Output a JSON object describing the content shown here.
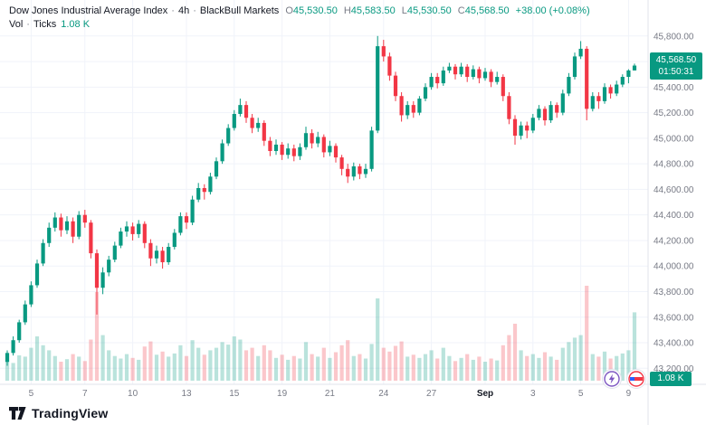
{
  "legend": {
    "title": "Dow Jones Industrial Average Index",
    "separator": "·",
    "interval": "4h",
    "feed": "BlackBull Markets",
    "ohlc": {
      "o_label": "O",
      "o": "45,530.50",
      "h_label": "H",
      "h": "45,583.50",
      "l_label": "L",
      "l": "45,530.50",
      "c_label": "C",
      "c": "45,568.50",
      "change": "+38.00 (+0.08%)"
    },
    "volume": {
      "label": "Vol",
      "separator": "·",
      "type": "Ticks",
      "value": "1.08 K"
    }
  },
  "price_axis": {
    "last_price": "45,568.50",
    "countdown": "01:50:31"
  },
  "volume_axis": {
    "last_volume": "1.08 K"
  },
  "footer": {
    "logo_text": "TradingView"
  },
  "chart_data": {
    "type": "candlestick",
    "title": "Dow Jones Industrial Average Index",
    "interval": "4h",
    "feed": "BlackBull Markets",
    "last_bar": {
      "open": 45530.5,
      "high": 45583.5,
      "low": 45530.5,
      "close": 45568.5,
      "change": 38.0,
      "change_pct": 0.08
    },
    "y_axis": {
      "min": 43200,
      "max": 45800,
      "step": 200
    },
    "x_ticks": [
      {
        "index": 4,
        "label": "5"
      },
      {
        "index": 13,
        "label": "7"
      },
      {
        "index": 21,
        "label": "10"
      },
      {
        "index": 30,
        "label": "13"
      },
      {
        "index": 38,
        "label": "15"
      },
      {
        "index": 46,
        "label": "19"
      },
      {
        "index": 54,
        "label": "21"
      },
      {
        "index": 63,
        "label": "24"
      },
      {
        "index": 71,
        "label": "27"
      },
      {
        "index": 80,
        "label": "Sep"
      },
      {
        "index": 88,
        "label": "3"
      },
      {
        "index": 96,
        "label": "5"
      },
      {
        "index": 104,
        "label": "9"
      }
    ],
    "colors": {
      "up": "#089981",
      "down": "#f23645",
      "vol_up": "rgba(8,153,129,0.28)",
      "vol_down": "rgba(242,54,69,0.28)",
      "grid": "#f0f3fa",
      "axis_text": "#787b86",
      "month_text": "#131722",
      "border": "#e0e3eb"
    },
    "candles": [
      [
        43250,
        43340,
        43220,
        43320
      ],
      [
        43320,
        43450,
        43300,
        43420
      ],
      [
        43420,
        43580,
        43400,
        43560
      ],
      [
        43560,
        43730,
        43540,
        43700
      ],
      [
        43700,
        43880,
        43680,
        43850
      ],
      [
        43850,
        44050,
        43830,
        44020
      ],
      [
        44020,
        44210,
        44000,
        44180
      ],
      [
        44180,
        44340,
        44150,
        44300
      ],
      [
        44300,
        44420,
        44270,
        44380
      ],
      [
        44380,
        44410,
        44230,
        44280
      ],
      [
        44280,
        44390,
        44250,
        44350
      ],
      [
        44350,
        44380,
        44180,
        44230
      ],
      [
        44230,
        44430,
        44210,
        44400
      ],
      [
        44400,
        44440,
        44300,
        44340
      ],
      [
        44340,
        44360,
        44060,
        44100
      ],
      [
        44100,
        44130,
        43620,
        43830
      ],
      [
        43830,
        43990,
        43780,
        43950
      ],
      [
        43950,
        44080,
        43920,
        44050
      ],
      [
        44050,
        44190,
        44030,
        44160
      ],
      [
        44160,
        44300,
        44140,
        44270
      ],
      [
        44270,
        44350,
        44230,
        44310
      ],
      [
        44310,
        44340,
        44200,
        44250
      ],
      [
        44250,
        44360,
        44220,
        44330
      ],
      [
        44330,
        44350,
        44140,
        44180
      ],
      [
        44180,
        44210,
        44000,
        44060
      ],
      [
        44060,
        44160,
        44020,
        44120
      ],
      [
        44120,
        44150,
        43980,
        44030
      ],
      [
        44030,
        44180,
        44010,
        44150
      ],
      [
        44150,
        44290,
        44130,
        44260
      ],
      [
        44260,
        44420,
        44240,
        44390
      ],
      [
        44390,
        44420,
        44290,
        44340
      ],
      [
        44340,
        44550,
        44320,
        44520
      ],
      [
        44520,
        44650,
        44500,
        44610
      ],
      [
        44610,
        44640,
        44520,
        44580
      ],
      [
        44580,
        44730,
        44560,
        44700
      ],
      [
        44700,
        44850,
        44680,
        44820
      ],
      [
        44820,
        44990,
        44800,
        44960
      ],
      [
        44960,
        45110,
        44940,
        45080
      ],
      [
        45080,
        45220,
        45060,
        45190
      ],
      [
        45190,
        45310,
        45170,
        45260
      ],
      [
        45260,
        45290,
        45120,
        45160
      ],
      [
        45160,
        45190,
        45040,
        45080
      ],
      [
        45080,
        45160,
        45050,
        45120
      ],
      [
        45120,
        45140,
        44940,
        44980
      ],
      [
        44980,
        45010,
        44860,
        44900
      ],
      [
        44900,
        44990,
        44870,
        44950
      ],
      [
        44950,
        44970,
        44830,
        44870
      ],
      [
        44870,
        44960,
        44840,
        44920
      ],
      [
        44920,
        44950,
        44820,
        44860
      ],
      [
        44860,
        44960,
        44830,
        44930
      ],
      [
        44930,
        45090,
        44910,
        45040
      ],
      [
        45040,
        45070,
        44920,
        44960
      ],
      [
        44960,
        45050,
        44930,
        45010
      ],
      [
        45010,
        45030,
        44850,
        44890
      ],
      [
        44890,
        44980,
        44860,
        44940
      ],
      [
        44940,
        44960,
        44810,
        44850
      ],
      [
        44850,
        44870,
        44710,
        44760
      ],
      [
        44760,
        44800,
        44650,
        44700
      ],
      [
        44700,
        44810,
        44670,
        44780
      ],
      [
        44780,
        44800,
        44680,
        44720
      ],
      [
        44720,
        44800,
        44690,
        44760
      ],
      [
        44760,
        45090,
        44740,
        45060
      ],
      [
        45060,
        45800,
        45040,
        45720
      ],
      [
        45720,
        45770,
        45600,
        45640
      ],
      [
        45640,
        45670,
        45450,
        45490
      ],
      [
        45490,
        45520,
        45290,
        45330
      ],
      [
        45330,
        45360,
        45130,
        45180
      ],
      [
        45180,
        45290,
        45150,
        45260
      ],
      [
        45260,
        45290,
        45160,
        45200
      ],
      [
        45200,
        45330,
        45180,
        45310
      ],
      [
        45310,
        45430,
        45290,
        45400
      ],
      [
        45400,
        45510,
        45380,
        45480
      ],
      [
        45480,
        45510,
        45390,
        45430
      ],
      [
        45430,
        45560,
        45410,
        45530
      ],
      [
        45530,
        45590,
        45510,
        45560
      ],
      [
        45560,
        45580,
        45460,
        45500
      ],
      [
        45500,
        45590,
        45480,
        45560
      ],
      [
        45560,
        45580,
        45440,
        45480
      ],
      [
        45480,
        45570,
        45460,
        45540
      ],
      [
        45540,
        45560,
        45430,
        45470
      ],
      [
        45470,
        45550,
        45450,
        45520
      ],
      [
        45520,
        45540,
        45400,
        45440
      ],
      [
        45440,
        45520,
        45420,
        45480
      ],
      [
        45480,
        45500,
        45290,
        45330
      ],
      [
        45330,
        45360,
        45110,
        45150
      ],
      [
        45150,
        45180,
        44950,
        45020
      ],
      [
        45020,
        45130,
        44990,
        45100
      ],
      [
        45100,
        45130,
        45000,
        45060
      ],
      [
        45060,
        45190,
        45040,
        45160
      ],
      [
        45160,
        45260,
        45140,
        45230
      ],
      [
        45230,
        45250,
        45100,
        45140
      ],
      [
        45140,
        45290,
        45120,
        45260
      ],
      [
        45260,
        45280,
        45160,
        45200
      ],
      [
        45200,
        45380,
        45180,
        45350
      ],
      [
        45350,
        45510,
        45330,
        45480
      ],
      [
        45480,
        45670,
        45460,
        45640
      ],
      [
        45640,
        45760,
        45620,
        45700
      ],
      [
        45700,
        45720,
        45140,
        45230
      ],
      [
        45230,
        45360,
        45210,
        45330
      ],
      [
        45330,
        45360,
        45230,
        45290
      ],
      [
        45290,
        45430,
        45270,
        45400
      ],
      [
        45400,
        45420,
        45310,
        45350
      ],
      [
        45350,
        45450,
        45330,
        45420
      ],
      [
        45420,
        45500,
        45400,
        45480
      ],
      [
        45480,
        45540,
        45430,
        45530.5
      ],
      [
        45530.5,
        45583.5,
        45530.5,
        45568.5
      ]
    ],
    "volumes": [
      320,
      280,
      400,
      380,
      520,
      700,
      560,
      480,
      390,
      300,
      340,
      420,
      380,
      310,
      650,
      1400,
      720,
      480,
      390,
      350,
      420,
      360,
      330,
      540,
      620,
      410,
      460,
      380,
      430,
      560,
      390,
      640,
      520,
      410,
      480,
      520,
      610,
      570,
      700,
      650,
      480,
      520,
      390,
      560,
      480,
      360,
      410,
      330,
      390,
      350,
      610,
      420,
      380,
      520,
      360,
      450,
      560,
      640,
      390,
      420,
      350,
      580,
      1300,
      520,
      460,
      550,
      620,
      380,
      410,
      360,
      420,
      480,
      350,
      520,
      390,
      310,
      360,
      420,
      330,
      380,
      300,
      350,
      320,
      560,
      720,
      900,
      480,
      390,
      420,
      360,
      450,
      380,
      330,
      520,
      610,
      680,
      720,
      1500,
      420,
      380,
      460,
      350,
      390,
      430,
      480,
      1080
    ]
  }
}
